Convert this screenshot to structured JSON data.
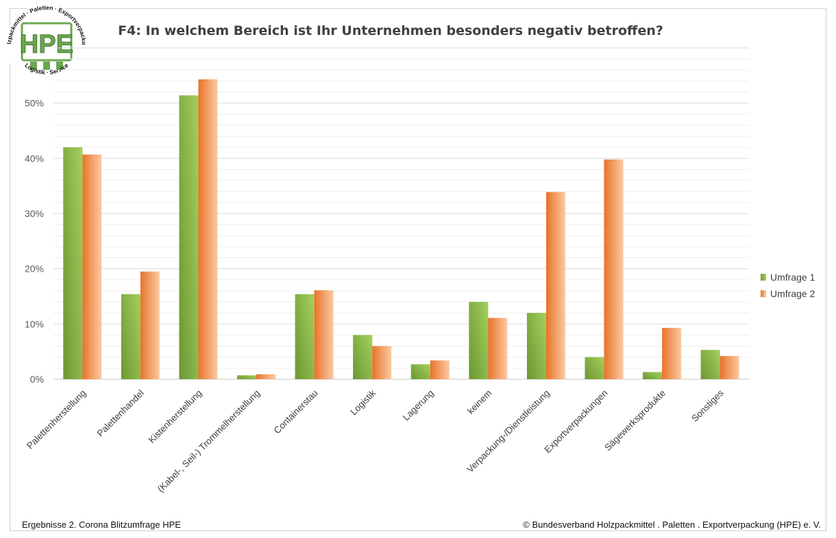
{
  "title": "F4: In welchem Bereich ist Ihr Unternehmen besonders negativ betroffen?",
  "logo": {
    "text": "HPE",
    "ring_top": "Holzpackmittel · Paletten · Exportverpackung",
    "ring_bottom": "Logistik · Service"
  },
  "footer": {
    "left": "Ergebnisse 2. Corona Blitzumfrage HPE",
    "right": "© Bundesverband Holzpackmittel . Paletten . Exportverpackung (HPE) e. V."
  },
  "colors": {
    "umfrage1": "#7fae43",
    "umfrage1_light": "#a6cf5d",
    "umfrage2": "#ef8a3a",
    "umfrage2_light": "#f9c39a",
    "logo_green": "#6aa84f"
  },
  "chart_data": {
    "type": "bar",
    "title": "F4: In welchem Bereich ist Ihr Unternehmen besonders negativ betroffen?",
    "categories": [
      "Palettenherstellung",
      "Palettenhandel",
      "Kistenherstellung",
      "(Kabel-, Seil-) Trommelherstellung",
      "Containerstau",
      "Logistik",
      "Lagerung",
      "keinem",
      "Verpackung-/Dienstleistung",
      "Exportverpackungen",
      "Sägewerksprodukte",
      "Sonstiges"
    ],
    "series": [
      {
        "name": "Umfrage 1",
        "values": [
          42.0,
          15.4,
          51.4,
          0.7,
          15.4,
          8.0,
          2.7,
          14.0,
          12.0,
          4.0,
          1.3,
          5.3
        ]
      },
      {
        "name": "Umfrage 2",
        "values": [
          40.7,
          19.5,
          54.3,
          0.9,
          16.1,
          6.0,
          3.4,
          11.1,
          33.9,
          39.8,
          9.3,
          4.2
        ]
      }
    ],
    "ylim": [
      0,
      60
    ],
    "yticks": [
      0,
      10,
      20,
      30,
      40,
      50
    ],
    "ytick_labels": [
      "0%",
      "10%",
      "20%",
      "30%",
      "40%",
      "50%"
    ],
    "xlabel": "",
    "ylabel": "",
    "grid": true,
    "legend": "right"
  }
}
